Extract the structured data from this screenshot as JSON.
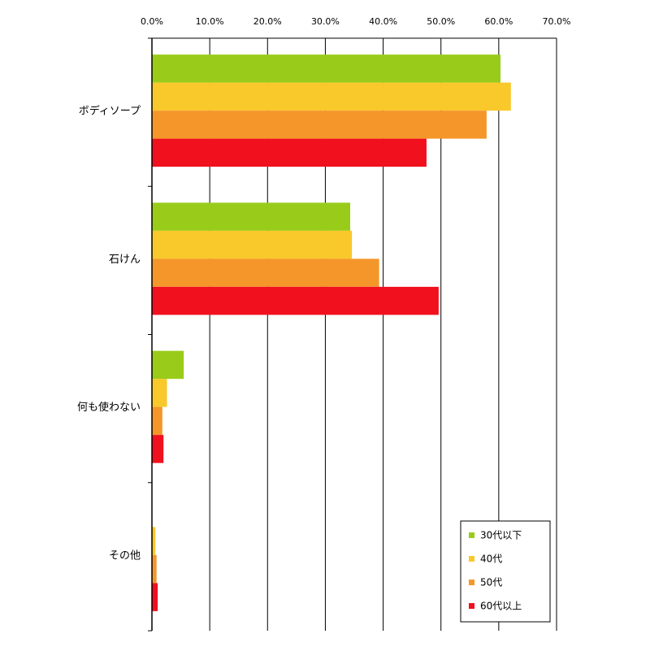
{
  "chart_data": {
    "type": "bar",
    "orientation": "horizontal",
    "categories": [
      "ボディソープ",
      "石けん",
      "何も使わない",
      "その他"
    ],
    "series": [
      {
        "name": "30代以下",
        "color": "#99CC1A",
        "values": [
          60.3,
          34.3,
          5.5,
          0.0
        ]
      },
      {
        "name": "40代",
        "color": "#F9C82A",
        "values": [
          62.1,
          34.6,
          2.6,
          0.6
        ]
      },
      {
        "name": "50代",
        "color": "#F5962A",
        "values": [
          57.9,
          39.3,
          1.8,
          0.8
        ]
      },
      {
        "name": "60代以上",
        "color": "#F0101E",
        "values": [
          47.5,
          49.6,
          2.0,
          1.0
        ]
      }
    ],
    "xlim": [
      0,
      70
    ],
    "xticks": [
      "0.0%",
      "10.0%",
      "20.0%",
      "30.0%",
      "40.0%",
      "50.0%",
      "60.0%",
      "70.0%"
    ],
    "grid": true,
    "legend_position": "bottom-right"
  }
}
